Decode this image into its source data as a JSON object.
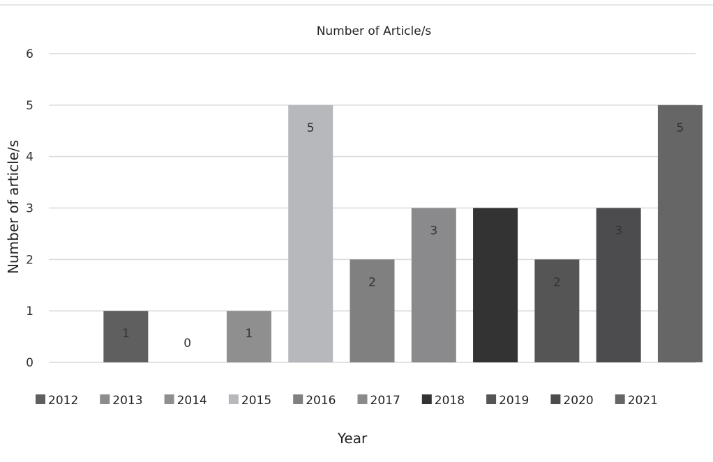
{
  "chart_data": {
    "type": "bar",
    "title": "Number of Article/s",
    "xlabel": "Year",
    "ylabel": "Number of article/s",
    "categories": [
      "2012",
      "2013",
      "2014",
      "2015",
      "2016",
      "2017",
      "2018",
      "2019",
      "2020",
      "2021"
    ],
    "values": [
      1,
      0,
      1,
      5,
      2,
      3,
      3,
      2,
      3,
      5
    ],
    "colors": [
      "#5f5f5f",
      "#8c8c8c",
      "#8f8f8f",
      "#b7b8bc",
      "#808080",
      "#8a8a8c",
      "#333333",
      "#555555",
      "#4c4c4e",
      "#666666"
    ],
    "ylim": [
      0,
      6
    ],
    "yticks": [
      0,
      1,
      2,
      3,
      4,
      5,
      6
    ],
    "grid": true,
    "legend": "bottom",
    "data_labels": true
  }
}
